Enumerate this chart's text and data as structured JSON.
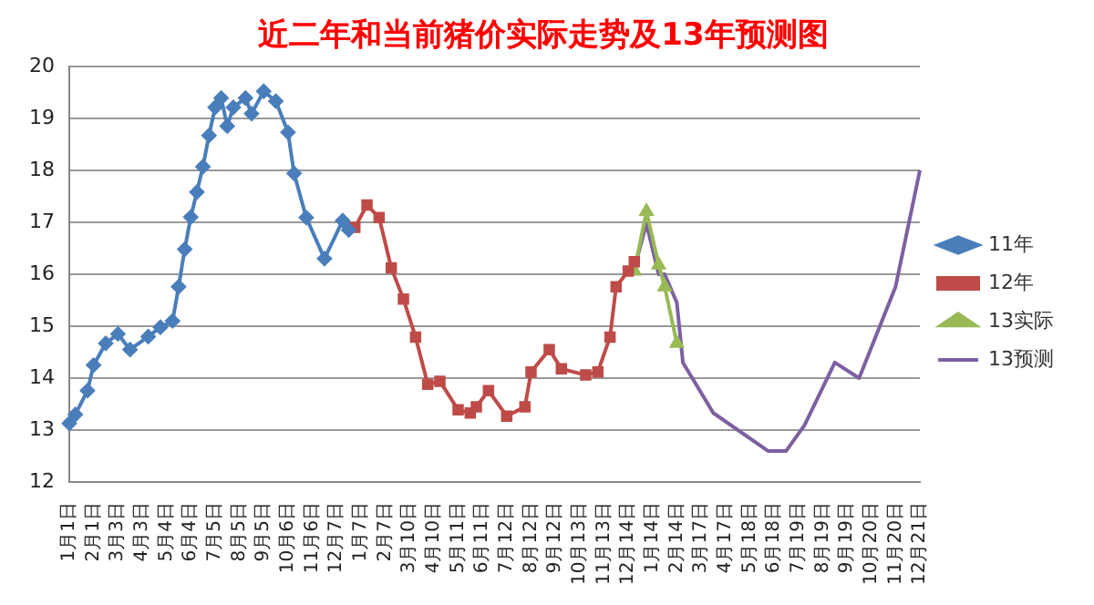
{
  "chart_data": {
    "type": "line",
    "title": "近二年和当前猪价实际走势及13年预测图",
    "categories": [
      "1月1日",
      null,
      null,
      null,
      "2月1日",
      null,
      null,
      null,
      "3月3日",
      null,
      null,
      null,
      "4月3日",
      null,
      null,
      null,
      "5月4日",
      null,
      null,
      null,
      "6月4日",
      null,
      null,
      null,
      "7月5日",
      null,
      null,
      null,
      "8月5日",
      null,
      null,
      null,
      "9月5日",
      null,
      null,
      null,
      "10月6日",
      null,
      null,
      null,
      "11月6日",
      null,
      null,
      null,
      "12月7日",
      null,
      null,
      null,
      "1月7日",
      null,
      null,
      null,
      "2月7日",
      null,
      null,
      null,
      "3月10日",
      null,
      null,
      null,
      "4月10日",
      null,
      null,
      null,
      "5月11日",
      null,
      null,
      null,
      "6月11日",
      null,
      null,
      null,
      "7月12日",
      null,
      null,
      null,
      "8月12日",
      null,
      null,
      null,
      "9月12日",
      null,
      null,
      null,
      "10月13日",
      null,
      null,
      null,
      "11月13日",
      null,
      null,
      null,
      "12月14日",
      null,
      null,
      null,
      "1月14日",
      null,
      null,
      null,
      "2月14日",
      null,
      null,
      null,
      "3月17日",
      null,
      null,
      null,
      "4月17日",
      null,
      null,
      null,
      "5月18日",
      null,
      null,
      null,
      "6月18日",
      null,
      null,
      null,
      "7月19日",
      null,
      null,
      null,
      "8月19日",
      null,
      null,
      null,
      "9月19日",
      null,
      null,
      null,
      "10月20日",
      null,
      null,
      null,
      "11月20日",
      null,
      null,
      null,
      "12月21日"
    ],
    "series": [
      {
        "name": "11年",
        "color": "#4a7ebb",
        "marker": "diamond",
        "values": [
          13.13,
          13.3,
          null,
          13.76,
          14.25,
          null,
          14.67,
          null,
          14.85,
          null,
          14.55,
          null,
          null,
          14.8,
          null,
          14.98,
          null,
          15.1,
          15.76,
          16.48,
          17.1,
          17.58,
          18.07,
          18.67,
          19.21,
          19.39,
          18.85,
          19.21,
          null,
          19.39,
          19.09,
          null,
          19.52,
          null,
          19.33,
          null,
          18.73,
          17.94,
          null,
          17.09,
          null,
          null,
          16.3,
          null,
          null,
          17.03,
          16.85,
          null,
          null,
          null,
          null,
          null,
          null,
          null,
          null,
          null,
          null,
          null,
          null,
          null,
          null,
          null,
          null,
          null,
          null,
          null,
          null,
          null,
          null,
          null,
          null,
          null,
          null,
          null,
          null,
          null,
          null,
          null,
          null,
          null,
          null,
          null,
          null,
          null,
          null,
          null,
          null,
          null,
          null,
          null,
          null,
          null,
          null,
          null,
          null,
          null,
          null,
          null,
          null,
          null,
          null,
          null,
          null,
          null,
          null,
          null,
          null,
          null,
          null,
          null,
          null,
          null,
          null,
          null,
          null,
          null,
          null,
          null,
          null,
          null,
          null,
          null,
          null,
          null,
          null,
          null,
          null,
          null,
          null,
          null,
          null,
          null,
          null,
          null,
          null,
          null,
          null,
          null,
          null,
          null,
          null
        ]
      },
      {
        "name": "12年",
        "color": "#be4b48",
        "marker": "square",
        "values": [
          null,
          null,
          null,
          null,
          null,
          null,
          null,
          null,
          null,
          null,
          null,
          null,
          null,
          null,
          null,
          null,
          null,
          null,
          null,
          null,
          null,
          null,
          null,
          null,
          null,
          null,
          null,
          null,
          null,
          null,
          null,
          null,
          null,
          null,
          null,
          null,
          null,
          null,
          null,
          null,
          null,
          null,
          null,
          null,
          null,
          null,
          null,
          16.9,
          null,
          17.33,
          null,
          17.09,
          null,
          16.12,
          null,
          15.52,
          null,
          14.79,
          null,
          13.88,
          null,
          13.94,
          null,
          null,
          13.39,
          null,
          13.33,
          13.45,
          null,
          13.76,
          null,
          null,
          13.27,
          null,
          null,
          13.45,
          14.12,
          null,
          null,
          14.55,
          null,
          14.18,
          null,
          null,
          null,
          14.06,
          null,
          14.12,
          null,
          14.79,
          15.76,
          null,
          16.06,
          16.24,
          null,
          null,
          null,
          null,
          null,
          null,
          null,
          null,
          null,
          null,
          null,
          null,
          null,
          null,
          null,
          null,
          null,
          null,
          null,
          null,
          null,
          null,
          null,
          null,
          null,
          null,
          null,
          null,
          null,
          null,
          null,
          null,
          null,
          null,
          null,
          null,
          null,
          null,
          null,
          null,
          null,
          null,
          null,
          null,
          null,
          null,
          null
        ]
      },
      {
        "name": "13实际",
        "color": "#98b954",
        "marker": "triangle",
        "values": [
          null,
          null,
          null,
          null,
          null,
          null,
          null,
          null,
          null,
          null,
          null,
          null,
          null,
          null,
          null,
          null,
          null,
          null,
          null,
          null,
          null,
          null,
          null,
          null,
          null,
          null,
          null,
          null,
          null,
          null,
          null,
          null,
          null,
          null,
          null,
          null,
          null,
          null,
          null,
          null,
          null,
          null,
          null,
          null,
          null,
          null,
          null,
          null,
          null,
          null,
          null,
          null,
          null,
          null,
          null,
          null,
          null,
          null,
          null,
          null,
          null,
          null,
          null,
          null,
          null,
          null,
          null,
          null,
          null,
          null,
          null,
          null,
          null,
          null,
          null,
          null,
          null,
          null,
          null,
          null,
          null,
          null,
          null,
          null,
          null,
          null,
          null,
          null,
          null,
          null,
          null,
          null,
          null,
          16.06,
          null,
          17.21,
          null,
          16.18,
          15.76,
          null,
          14.67,
          null,
          null,
          null,
          null,
          null,
          null,
          null,
          null,
          null,
          null,
          null,
          null,
          null,
          null,
          null,
          null,
          null,
          null,
          null,
          null,
          null,
          null,
          null,
          null,
          null,
          null,
          null,
          null,
          null,
          null,
          null,
          null,
          null,
          null,
          null,
          null,
          null,
          null,
          null,
          null
        ]
      },
      {
        "name": "13预测",
        "color": "#7d60a0",
        "marker": "none",
        "values": [
          null,
          null,
          null,
          null,
          null,
          null,
          null,
          null,
          null,
          null,
          null,
          null,
          null,
          null,
          null,
          null,
          null,
          null,
          null,
          null,
          null,
          null,
          null,
          null,
          null,
          null,
          null,
          null,
          null,
          null,
          null,
          null,
          null,
          null,
          null,
          null,
          null,
          null,
          null,
          null,
          null,
          null,
          null,
          null,
          null,
          null,
          null,
          null,
          null,
          null,
          null,
          null,
          null,
          null,
          null,
          null,
          null,
          null,
          null,
          null,
          null,
          null,
          null,
          null,
          null,
          null,
          null,
          null,
          null,
          null,
          null,
          null,
          null,
          null,
          null,
          null,
          null,
          null,
          null,
          null,
          null,
          null,
          null,
          null,
          null,
          null,
          null,
          null,
          null,
          null,
          null,
          null,
          null,
          16.12,
          null,
          16.97,
          null,
          16.0,
          16.0,
          null,
          15.45,
          14.3,
          null,
          null,
          null,
          null,
          13.33,
          null,
          null,
          null,
          null,
          null,
          null,
          null,
          null,
          12.6,
          null,
          null,
          12.6,
          null,
          null,
          13.09,
          null,
          null,
          null,
          null,
          14.3,
          null,
          null,
          null,
          14.0,
          null,
          null,
          null,
          null,
          null,
          15.76,
          null,
          null,
          null,
          18.0
        ]
      }
    ],
    "ylim": [
      12,
      20
    ],
    "yticks": [
      12,
      13,
      14,
      15,
      16,
      17,
      18,
      19,
      20
    ],
    "grid": "y",
    "legend": "right"
  }
}
